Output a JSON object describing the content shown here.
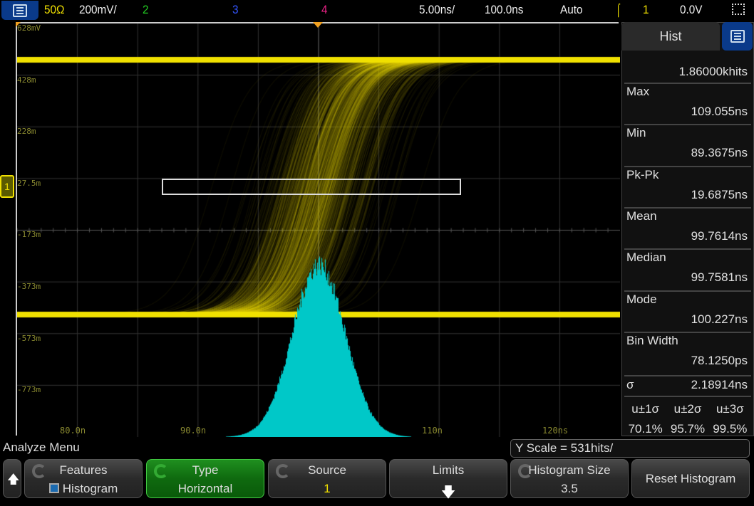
{
  "top_bar": {
    "ch1_impedance": "50Ω",
    "ch1_scale": "200mV/",
    "ch2": "2",
    "ch3": "3",
    "ch4": "4",
    "time_scale": "5.00ns/",
    "time_delay": "100.0ns",
    "trigger_mode": "Auto",
    "trigger_source": "1",
    "trigger_level": "0.0V"
  },
  "y_axis_labels": [
    "628mV",
    "428m",
    "228m",
    "27.5m",
    "-173m",
    "-373m",
    "-573m",
    "-773m"
  ],
  "x_axis_labels": [
    "80.0n",
    "90.0n",
    "110n",
    "120ns"
  ],
  "colors": {
    "ch1": "#f0e000",
    "histogram": "#00c8c8",
    "ch2": "#22cc22",
    "ch3": "#3355ff",
    "ch4": "#ee2288"
  },
  "panel": {
    "title": "Hist",
    "hits": "1.86000khits",
    "stats": [
      {
        "label": "Max",
        "value": "109.055ns"
      },
      {
        "label": "Min",
        "value": "89.3675ns"
      },
      {
        "label": "Pk-Pk",
        "value": "19.6875ns"
      },
      {
        "label": "Mean",
        "value": "99.7614ns"
      },
      {
        "label": "Median",
        "value": "99.7581ns"
      },
      {
        "label": "Mode",
        "value": "100.227ns"
      },
      {
        "label": "Bin Width",
        "value": "78.1250ps"
      }
    ],
    "sigma_label": "σ",
    "sigma_value": "2.18914ns",
    "sigma_heads": [
      "u±1σ",
      "u±2σ",
      "u±3σ"
    ],
    "sigma_pcts": [
      "70.1%",
      "95.7%",
      "99.5%"
    ]
  },
  "status": {
    "menu_title": "Analyze Menu",
    "y_scale": "Y Scale = 531hits/"
  },
  "softkeys": {
    "features": {
      "label": "Features",
      "value": "Histogram"
    },
    "type": {
      "label": "Type",
      "value": "Horizontal"
    },
    "source": {
      "label": "Source",
      "value": "1"
    },
    "limits": {
      "label": "Limits"
    },
    "hist_size": {
      "label": "Histogram Size",
      "value": "3.5"
    },
    "reset": {
      "label": "Reset Histogram"
    }
  }
}
